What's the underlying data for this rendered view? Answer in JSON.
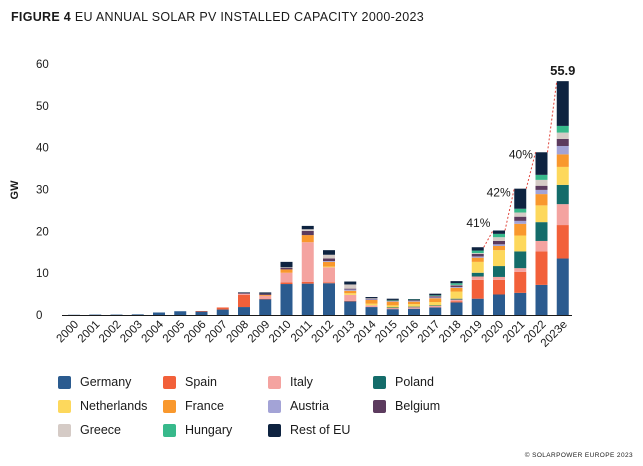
{
  "figure_label": "FIGURE 4",
  "figure_title": "EU ANNUAL SOLAR PV INSTALLED CAPACITY 2000-2023",
  "copyright": "© SOLARPOWER EUROPE 2023",
  "colors": {
    "Germany": "#2b5b8f",
    "Spain": "#f2603a",
    "Italy": "#f4a3a0",
    "Poland": "#146c6a",
    "Netherlands": "#fdd85c",
    "France": "#f9982d",
    "Austria": "#a3a3d6",
    "Belgium": "#5c3b5e",
    "Greece": "#d5cbc6",
    "Hungary": "#37b98b",
    "Rest of EU": "#0e2340",
    "axis": "#1a1a1a",
    "growth_line": "#e0443a"
  },
  "legend": [
    "Germany",
    "Spain",
    "Italy",
    "Poland",
    "Netherlands",
    "France",
    "Austria",
    "Belgium",
    "Greece",
    "Hungary",
    "Rest of EU"
  ],
  "chart_data": {
    "type": "bar",
    "stacked": true,
    "title": "EU ANNUAL SOLAR PV INSTALLED CAPACITY 2000-2023",
    "xlabel": "",
    "ylabel": "GW",
    "ylim": [
      0,
      60
    ],
    "yticks": [
      0,
      10,
      20,
      30,
      40,
      50,
      60
    ],
    "grid": false,
    "categories": [
      "2000",
      "2001",
      "2002",
      "2003",
      "2004",
      "2005",
      "2006",
      "2007",
      "2008",
      "2009",
      "2010",
      "2011",
      "2012",
      "2013",
      "2014",
      "2015",
      "2016",
      "2017",
      "2018",
      "2019",
      "2020",
      "2021",
      "2022",
      "2023e"
    ],
    "series": [
      {
        "name": "Germany",
        "values": [
          0.05,
          0.1,
          0.1,
          0.15,
          0.6,
          0.9,
          0.85,
          1.3,
          1.9,
          3.8,
          7.4,
          7.5,
          7.6,
          3.3,
          1.9,
          1.4,
          1.5,
          1.8,
          3.0,
          3.9,
          4.9,
          5.3,
          7.2,
          13.5
        ]
      },
      {
        "name": "Spain",
        "values": [
          0,
          0,
          0,
          0,
          0,
          0,
          0.1,
          0.5,
          2.9,
          0.1,
          0.4,
          0.4,
          0.2,
          0.1,
          0,
          0,
          0,
          0,
          0.3,
          4.5,
          3.5,
          5.0,
          8.0,
          8.0
        ]
      },
      {
        "name": "Italy",
        "values": [
          0,
          0,
          0,
          0,
          0,
          0,
          0,
          0,
          0.3,
          0.7,
          2.3,
          9.5,
          3.6,
          1.4,
          0.4,
          0.3,
          0.4,
          0.4,
          0.4,
          0.8,
          0.7,
          0.9,
          2.5,
          5.0
        ]
      },
      {
        "name": "Poland",
        "values": [
          0,
          0,
          0,
          0,
          0,
          0,
          0,
          0,
          0,
          0,
          0,
          0,
          0,
          0,
          0,
          0.1,
          0.1,
          0.1,
          0.2,
          0.9,
          2.6,
          4.0,
          4.5,
          4.6
        ]
      },
      {
        "name": "Netherlands",
        "values": [
          0,
          0,
          0,
          0,
          0,
          0,
          0,
          0,
          0,
          0,
          0,
          0,
          0.2,
          0.4,
          0.4,
          0.5,
          0.6,
          0.8,
          1.7,
          2.6,
          3.8,
          3.8,
          4.0,
          4.3
        ]
      },
      {
        "name": "France",
        "values": [
          0,
          0,
          0,
          0,
          0,
          0,
          0,
          0,
          0,
          0.2,
          0.8,
          1.7,
          1.1,
          0.6,
          0.9,
          0.9,
          0.6,
          0.9,
          0.9,
          1.0,
          1.0,
          2.8,
          2.7,
          3.0
        ]
      },
      {
        "name": "Austria",
        "values": [
          0,
          0,
          0,
          0,
          0,
          0,
          0,
          0,
          0,
          0,
          0,
          0,
          0.2,
          0.3,
          0.2,
          0.2,
          0.2,
          0.2,
          0.2,
          0.3,
          0.4,
          0.7,
          1.0,
          2.0
        ]
      },
      {
        "name": "Belgium",
        "values": [
          0,
          0,
          0,
          0,
          0,
          0,
          0,
          0,
          0.2,
          0.3,
          0.4,
          1.0,
          0.6,
          0.2,
          0.1,
          0.1,
          0.2,
          0.3,
          0.4,
          0.6,
          0.8,
          1.0,
          1.0,
          1.7
        ]
      },
      {
        "name": "Greece",
        "values": [
          0,
          0,
          0,
          0,
          0,
          0,
          0,
          0,
          0,
          0,
          0.1,
          0.4,
          0.9,
          1.0,
          0.1,
          0,
          0,
          0.1,
          0.1,
          0.2,
          0.9,
          1.0,
          1.4,
          1.5
        ]
      },
      {
        "name": "Hungary",
        "values": [
          0,
          0,
          0,
          0,
          0,
          0,
          0,
          0,
          0,
          0,
          0,
          0,
          0,
          0,
          0,
          0.1,
          0.1,
          0.1,
          0.4,
          0.6,
          0.8,
          0.9,
          1.2,
          1.6
        ]
      },
      {
        "name": "Rest of EU",
        "values": [
          0,
          0,
          0,
          0,
          0,
          0,
          0,
          0,
          0.1,
          0.3,
          1.3,
          0.8,
          1.1,
          0.7,
          0.3,
          0.3,
          0.1,
          0.4,
          0.5,
          0.8,
          0.8,
          4.8,
          5.4,
          10.7
        ]
      }
    ],
    "annotations": [
      {
        "category": "2020",
        "text": "41%"
      },
      {
        "category": "2021",
        "text": "42%"
      },
      {
        "category": "2022",
        "text": "40%"
      },
      {
        "category": "2023e",
        "text": "55.9"
      }
    ]
  }
}
